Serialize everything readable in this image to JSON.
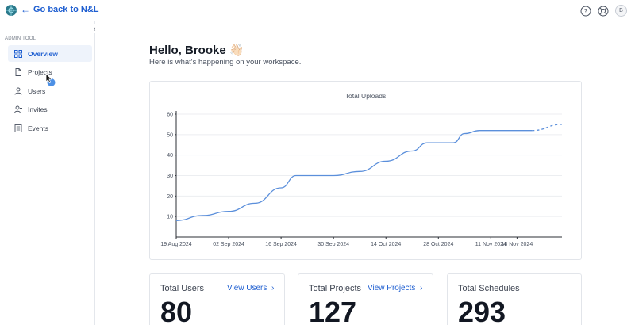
{
  "topbar": {
    "back_label": "Go back to N&L",
    "icons": [
      "help-icon",
      "globe-icon"
    ],
    "avatar_initial": "B"
  },
  "sidebar": {
    "section_label": "ADMIN TOOL",
    "items": [
      {
        "label": "Overview",
        "icon": "grid-icon",
        "active": true
      },
      {
        "label": "Projects",
        "icon": "file-icon",
        "active": false
      },
      {
        "label": "Users",
        "icon": "user-icon",
        "active": false
      },
      {
        "label": "Invites",
        "icon": "user-plus-icon",
        "active": false
      },
      {
        "label": "Events",
        "icon": "list-icon",
        "active": false
      }
    ]
  },
  "main": {
    "greeting": "Hello, Brooke 👋🏻",
    "subgreeting": "Here is what's happening on your workspace."
  },
  "chart_data": {
    "type": "line",
    "title": "Total Uploads",
    "xlabel": "",
    "ylabel": "",
    "ylim": [
      0,
      60
    ],
    "y_ticks": [
      10,
      20,
      30,
      40,
      50,
      60
    ],
    "x_ticks": [
      "19 Aug 2024",
      "02 Sep 2024",
      "16 Sep 2024",
      "30 Sep 2024",
      "14 Oct 2024",
      "28 Oct 2024",
      "11 Nov 2024",
      "18 Nov 2024"
    ],
    "series": [
      {
        "style": "solid",
        "x": [
          "2024-08-19",
          "2024-08-26",
          "2024-09-02",
          "2024-09-09",
          "2024-09-16",
          "2024-09-20",
          "2024-09-23",
          "2024-09-30",
          "2024-10-07",
          "2024-10-14",
          "2024-10-21",
          "2024-10-25",
          "2024-10-28",
          "2024-11-01",
          "2024-11-04",
          "2024-11-08",
          "2024-11-11",
          "2024-11-18",
          "2024-11-22"
        ],
        "values": [
          8,
          10.5,
          12.5,
          16.5,
          24,
          30,
          30,
          30,
          32,
          37,
          42,
          46,
          46,
          46,
          50.5,
          52,
          52,
          52,
          52
        ]
      },
      {
        "style": "dashed",
        "x": [
          "2024-11-22",
          "2024-11-30"
        ],
        "values": [
          52,
          55
        ]
      }
    ],
    "grid": true,
    "line_color": "#5b8fdb"
  },
  "stats": [
    {
      "label": "Total Users",
      "link": "View Users",
      "value": "80"
    },
    {
      "label": "Total Projects",
      "link": "View Projects",
      "value": "127"
    },
    {
      "label": "Total Schedules",
      "link": "",
      "value": "293"
    }
  ]
}
